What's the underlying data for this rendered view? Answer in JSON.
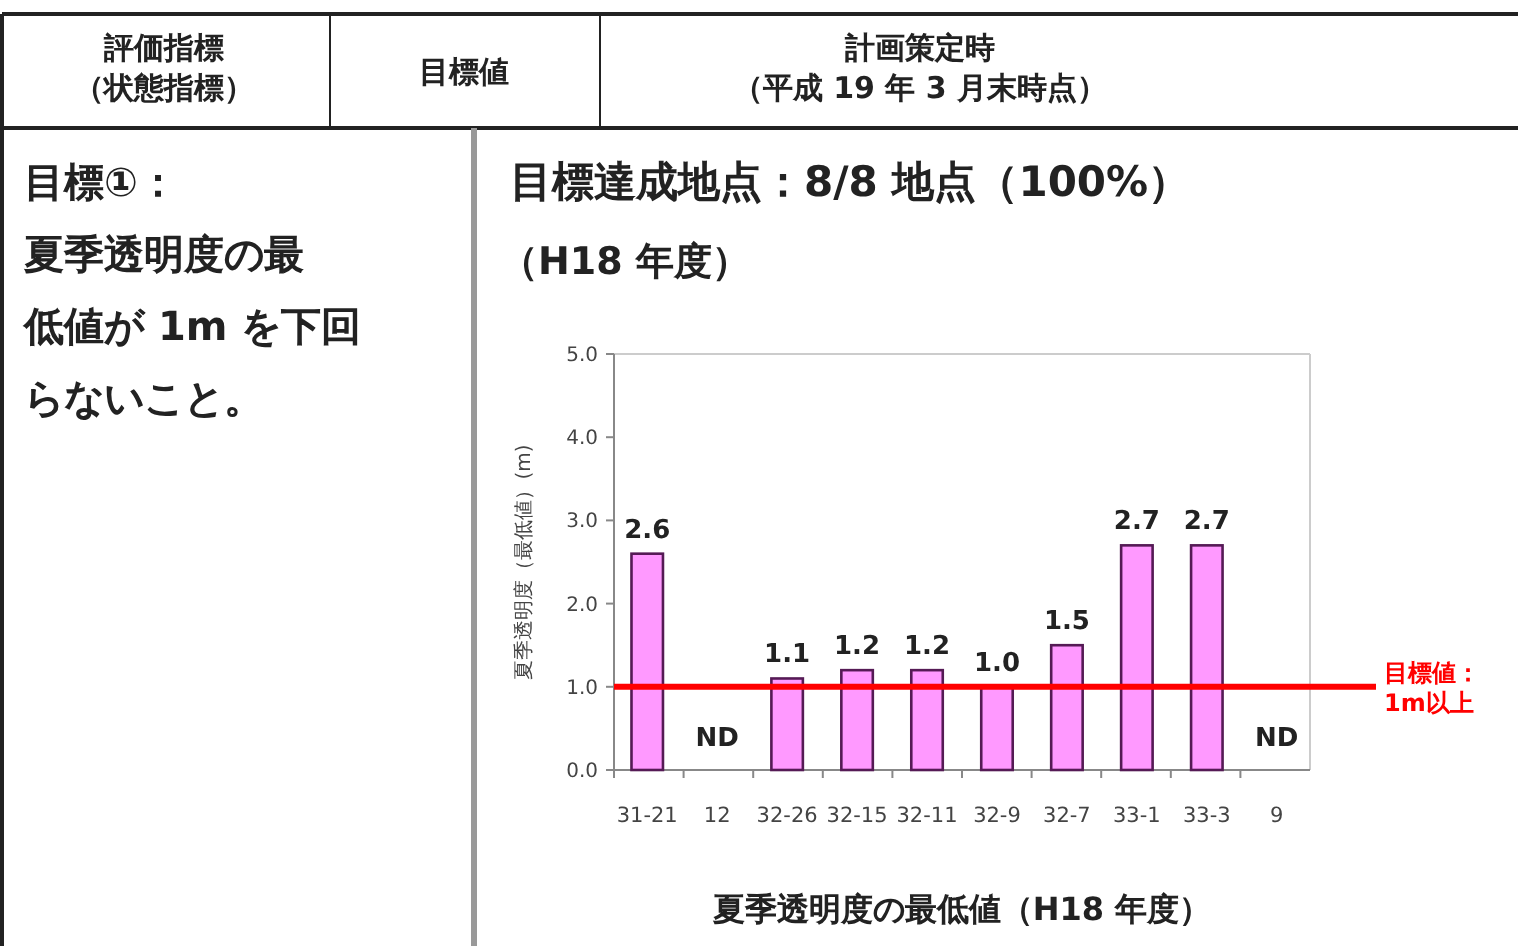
{
  "chart_data": {
    "type": "bar",
    "title": "目標達成地点：8/8 地点（100%）",
    "subtitle": "（H18 年度）",
    "xlabel": "夏季透明度の最低値（H18 年度）",
    "ylabel": "夏季透明度（最低値）(m)",
    "annotations": [
      "評価指標（状態指標）",
      "目標値",
      "計画策定時（平成 19 年 3 月末時点）",
      "目標①：夏季透明度の最低値が 1m を下回らないこと。"
    ],
    "categories": [
      "31-21",
      "12",
      "32-26",
      "32-15",
      "32-11",
      "32-9",
      "32-7",
      "33-1",
      "33-3",
      "9"
    ],
    "values": [
      2.6,
      null,
      1.1,
      1.2,
      1.2,
      1.0,
      1.5,
      2.7,
      2.7,
      null
    ],
    "value_labels": [
      "2.6",
      "ND",
      "1.1",
      "1.2",
      "1.2",
      "1.0",
      "1.5",
      "2.7",
      "2.7",
      "ND"
    ],
    "color": "#ff99ff",
    "ylim": [
      0,
      5
    ],
    "yticks": [
      {
        "value": 0,
        "label": "0.0"
      },
      {
        "value": 1,
        "label": "1.0"
      },
      {
        "value": 2,
        "label": "2.0"
      },
      {
        "value": 3,
        "label": "3.0"
      },
      {
        "value": 4,
        "label": "4.0"
      },
      {
        "value": 5,
        "label": "5.0"
      }
    ],
    "ref_lines": [
      {
        "axis": "y",
        "value": 1,
        "label": "目標値：1m以上",
        "color": "#ff0000"
      }
    ],
    "grid": false
  }
}
